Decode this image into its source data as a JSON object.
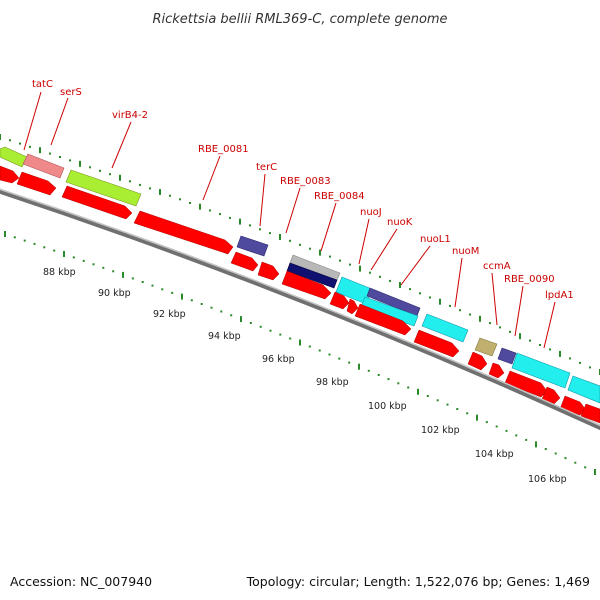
{
  "title": "Rickettsia bellii RML369-C, complete genome",
  "accession_text": "Accession: NC_007940",
  "summary_text": "Topology: circular; Length: 1,522,076 bp; Genes: 1,469",
  "colors": {
    "cds": "#ff0000",
    "lime": "#aaee33",
    "pink": "#f08a8a",
    "slate": "#4f4a9e",
    "navy": "#101070",
    "grey": "#b8b8b8",
    "cyan": "#22eeee",
    "olive": "#bfb070",
    "backbone": "#888888",
    "tick": "#2a8a2a",
    "label": "#cc0000"
  },
  "kbp_labels": [
    "88 kbp",
    "90 kbp",
    "92 kbp",
    "94 kbp",
    "96 kbp",
    "98 kbp",
    "100 kbp",
    "102 kbp",
    "104 kbp",
    "106 kbp"
  ],
  "gene_labels": [
    "tatC",
    "serS",
    "virB4-2",
    "RBE_0081",
    "terC",
    "RBE_0083",
    "RBE_0084",
    "nuoJ",
    "nuoK",
    "nuoL1",
    "nuoM",
    "ccmA",
    "RBE_0090",
    "lpdA1"
  ]
}
